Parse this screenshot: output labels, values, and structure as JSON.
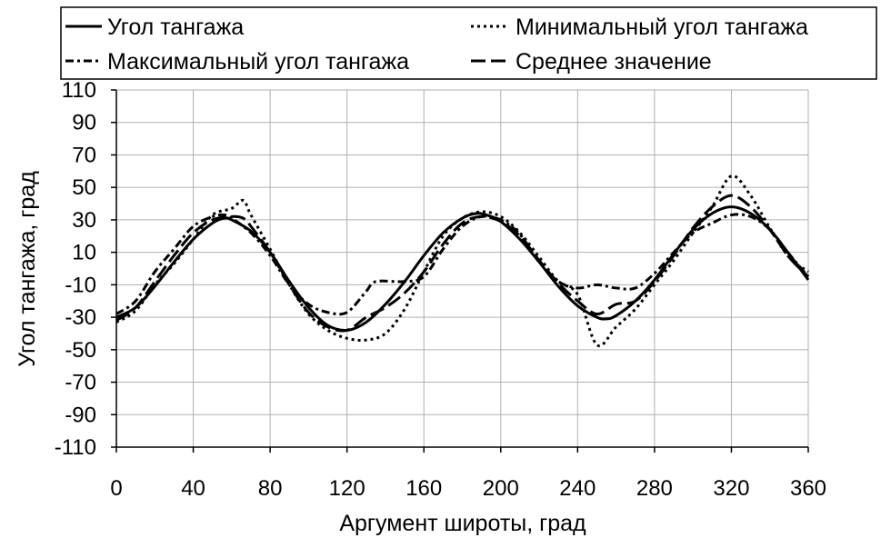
{
  "chart_data": {
    "type": "line",
    "xlabel": "Аргумент широты, град",
    "ylabel": "Угол тангажа, град",
    "xlim": [
      0,
      360
    ],
    "ylim": [
      -110,
      110
    ],
    "xticks": [
      0,
      40,
      80,
      120,
      160,
      200,
      240,
      280,
      320,
      360
    ],
    "yticks": [
      110,
      90,
      70,
      50,
      30,
      10,
      -10,
      -30,
      -50,
      -70,
      -90,
      -110
    ],
    "grid": true,
    "legend_position": "top",
    "series": [
      {
        "name": "Угол тангажа",
        "style": "solid",
        "x": [
          0,
          10,
          20,
          30,
          40,
          50,
          56,
          60,
          70,
          80,
          90,
          100,
          110,
          120,
          130,
          140,
          150,
          160,
          170,
          180,
          188,
          195,
          200,
          210,
          220,
          230,
          240,
          250,
          255,
          260,
          270,
          280,
          290,
          300,
          310,
          320,
          330,
          340,
          350,
          360
        ],
        "y": [
          -30,
          -24,
          -11,
          4,
          18,
          28,
          31,
          30,
          23,
          10,
          -8,
          -24,
          -35,
          -38,
          -33,
          -22,
          -8,
          8,
          22,
          31,
          34,
          32,
          29,
          18,
          4,
          -11,
          -23,
          -30,
          -31,
          -29,
          -20,
          -7,
          9,
          24,
          34,
          38,
          34,
          24,
          9,
          -7
        ]
      },
      {
        "name": "Минимальный угол тангажа",
        "style": "dotted",
        "x": [
          0,
          10,
          20,
          30,
          40,
          50,
          60,
          66,
          70,
          80,
          90,
          100,
          110,
          120,
          130,
          140,
          150,
          160,
          170,
          180,
          190,
          200,
          210,
          220,
          230,
          240,
          250,
          260,
          270,
          280,
          290,
          300,
          310,
          320,
          330,
          340,
          350,
          360
        ],
        "y": [
          -33,
          -26,
          -10,
          3,
          18,
          33,
          37,
          42,
          33,
          12,
          -10,
          -28,
          -38,
          -43,
          -44,
          -40,
          -25,
          -2,
          20,
          31,
          35,
          32,
          22,
          7,
          -8,
          -16,
          -47,
          -36,
          -25,
          -10,
          5,
          22,
          38,
          57,
          45,
          25,
          7,
          -2
        ]
      },
      {
        "name": "Максимальный угол тангажа",
        "style": "dash-dot",
        "x": [
          0,
          10,
          20,
          30,
          40,
          50,
          56,
          60,
          70,
          80,
          90,
          100,
          110,
          120,
          130,
          135,
          150,
          160,
          170,
          180,
          190,
          200,
          210,
          220,
          230,
          240,
          250,
          260,
          270,
          280,
          290,
          300,
          310,
          320,
          330,
          340,
          350,
          360
        ],
        "y": [
          -28,
          -20,
          -2,
          12,
          26,
          32,
          33,
          31,
          22,
          8,
          -10,
          -22,
          -27,
          -27,
          -14,
          -8,
          -8,
          -5,
          12,
          26,
          32,
          30,
          21,
          4,
          -8,
          -12,
          -10,
          -12,
          -12,
          -3,
          10,
          22,
          28,
          33,
          32,
          24,
          9,
          -5
        ]
      },
      {
        "name": "Среднее значение",
        "style": "long-dash",
        "x": [
          0,
          10,
          20,
          30,
          40,
          50,
          60,
          66,
          70,
          80,
          90,
          100,
          110,
          120,
          130,
          140,
          150,
          160,
          170,
          180,
          190,
          200,
          210,
          220,
          230,
          240,
          250,
          260,
          270,
          280,
          290,
          300,
          310,
          320,
          330,
          340,
          350,
          360
        ],
        "y": [
          -32,
          -24,
          -8,
          8,
          22,
          30,
          32,
          31,
          26,
          10,
          -10,
          -27,
          -36,
          -38,
          -30,
          -24,
          -15,
          -2,
          15,
          28,
          32,
          29,
          20,
          5,
          -9,
          -20,
          -28,
          -22,
          -20,
          -8,
          8,
          25,
          38,
          45,
          38,
          24,
          7,
          -5
        ]
      }
    ]
  }
}
